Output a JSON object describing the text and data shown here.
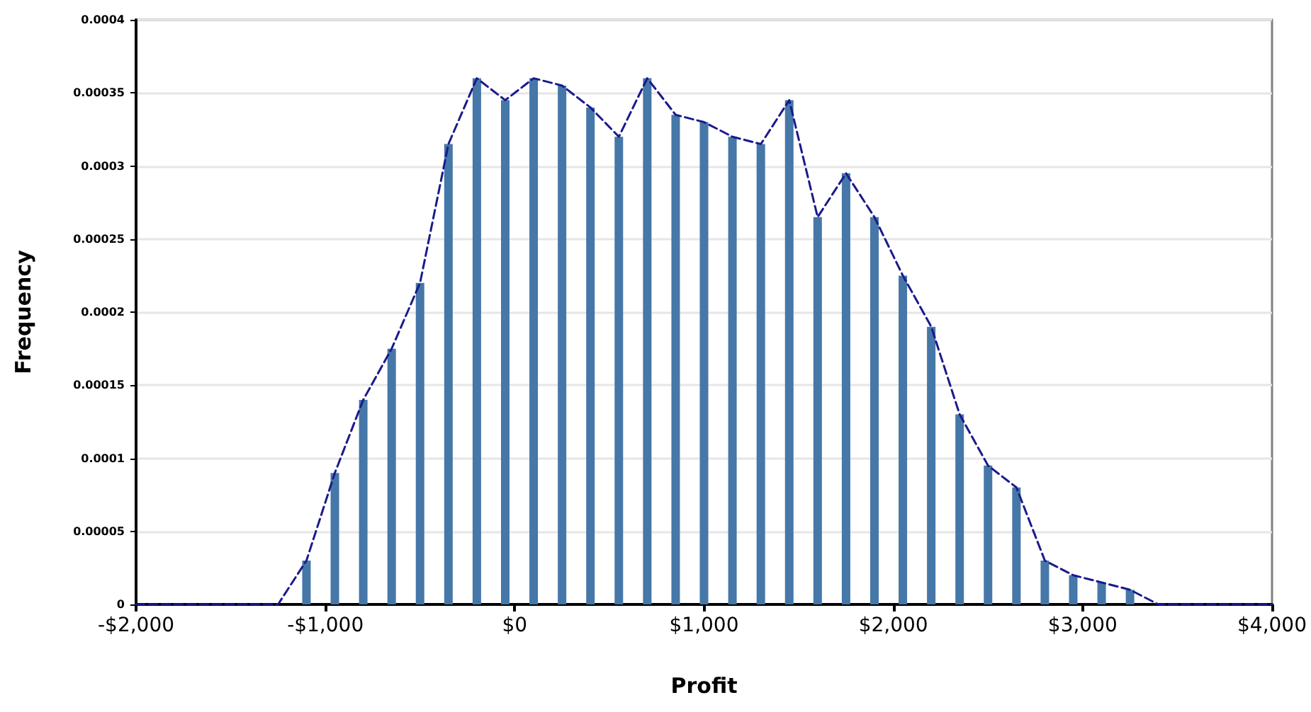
{
  "chart_data": {
    "type": "bar",
    "xlabel": "Profit",
    "ylabel": "Frequency",
    "x": [
      -2000,
      -1850,
      -1700,
      -1550,
      -1400,
      -1250,
      -1100,
      -950,
      -800,
      -650,
      -500,
      -350,
      -200,
      -50,
      100,
      250,
      400,
      550,
      700,
      850,
      1000,
      1150,
      1300,
      1450,
      1600,
      1750,
      1900,
      2050,
      2200,
      2350,
      2500,
      2650,
      2800,
      2950,
      3100,
      3250,
      3400,
      3550,
      3700,
      3850,
      4000
    ],
    "series": [
      {
        "color": "#4577a8",
        "values": [
          0,
          0,
          0,
          0,
          0,
          0,
          3e-05,
          9e-05,
          0.00014,
          0.000175,
          0.00022,
          0.000315,
          0.00036,
          0.000345,
          0.00036,
          0.000355,
          0.00034,
          0.00032,
          0.00036,
          0.000335,
          0.00033,
          0.00032,
          0.000315,
          0.000345,
          0.000265,
          0.000295,
          0.000265,
          0.000225,
          0.00019,
          0.00013,
          9.5e-05,
          8e-05,
          3e-05,
          2e-05,
          1.5e-05,
          1e-05,
          0,
          0,
          0,
          0,
          0
        ]
      },
      {
        "type": "line",
        "color": "#1a1a8c",
        "line_style": "dashed",
        "marker": "none",
        "values": [
          0,
          0,
          0,
          0,
          0,
          0,
          3e-05,
          9e-05,
          0.00014,
          0.000175,
          0.00022,
          0.000315,
          0.00036,
          0.000345,
          0.00036,
          0.000355,
          0.00034,
          0.00032,
          0.00036,
          0.000335,
          0.00033,
          0.00032,
          0.000315,
          0.000345,
          0.000265,
          0.000295,
          0.000265,
          0.000225,
          0.00019,
          0.00013,
          9.5e-05,
          8e-05,
          3e-05,
          2e-05,
          1.5e-05,
          1e-05,
          0,
          0,
          0,
          0,
          0
        ]
      }
    ],
    "xlim": [
      -2000,
      4000
    ],
    "xticks": [
      {
        "value": -2000,
        "label": "-$2,000"
      },
      {
        "value": -1000,
        "label": "-$1,000"
      },
      {
        "value": 0,
        "label": "$0"
      },
      {
        "value": 1000,
        "label": "$1,000"
      },
      {
        "value": 2000,
        "label": "$2,000"
      },
      {
        "value": 3000,
        "label": "$3,000"
      },
      {
        "value": 4000,
        "label": "$4,000"
      }
    ],
    "ylim": [
      0,
      0.0004
    ],
    "yticks": [
      0,
      {
        "value": 5e-05,
        "label": "0.00005"
      },
      {
        "value": 0.0001,
        "label": "0.0001"
      },
      {
        "value": 0.00015,
        "label": "0.00015"
      },
      {
        "value": 0.0002,
        "label": "0.0002"
      },
      {
        "value": 0.00025,
        "label": "0.00025"
      },
      {
        "value": 0.0003,
        "label": "0.0003"
      },
      {
        "value": 0.00035,
        "label": "0.00035"
      },
      {
        "value": 0.0004,
        "label": "0.0004"
      }
    ],
    "grid": "y"
  }
}
